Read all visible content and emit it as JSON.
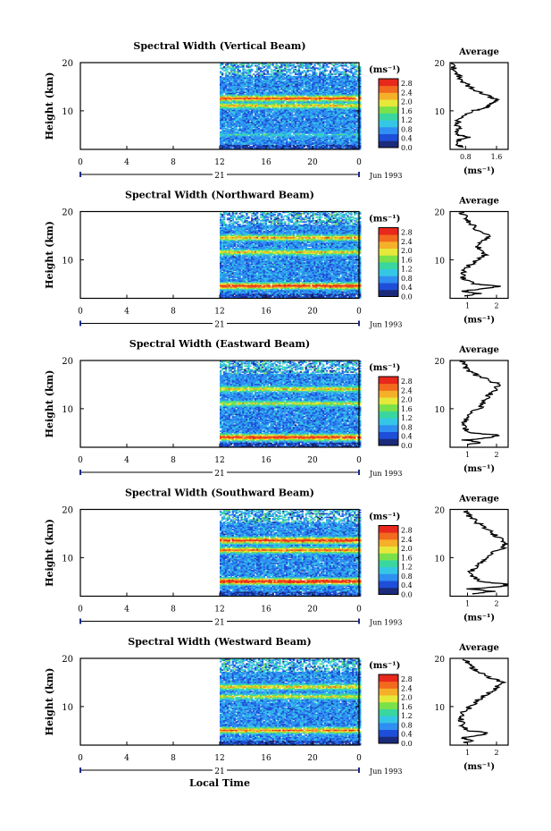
{
  "figure": {
    "x_axis_title": "Local Time",
    "date_label": "Jun 1993",
    "day_label": "21",
    "time_ticks": [
      "0",
      "4",
      "8",
      "12",
      "16",
      "20",
      "0"
    ],
    "height_ticks": [
      "20",
      "10"
    ],
    "height_axis_label": "Height (km)",
    "colorbar_unit": "(ms⁻¹)",
    "colorbar_ticks": [
      "2.8",
      "2.4",
      "2.0",
      "1.6",
      "1.2",
      "0.8",
      "0.4",
      "0.0"
    ],
    "average_title": "Average",
    "average_unit": "(ms⁻¹)",
    "palette": [
      "#1b2a7a",
      "#1e4fd8",
      "#2f8ff2",
      "#35c6e6",
      "#39d6a0",
      "#7be14a",
      "#e6e83a",
      "#f5b02a",
      "#f26a1e",
      "#e8281c"
    ]
  },
  "chart_data": [
    {
      "type": "heatmap",
      "title": "Spectral Width (Vertical Beam)",
      "xlabel": "",
      "ylabel": "Height (km)",
      "xlim": [
        0,
        24
      ],
      "ylim": [
        2,
        20
      ],
      "data_time_range": [
        12,
        24
      ],
      "value_range": [
        0,
        3.0
      ],
      "features": [
        {
          "height": 12.5,
          "value": 2.6
        },
        {
          "height": 11.0,
          "value": 2.0
        },
        {
          "height": 5.0,
          "value": 1.0
        },
        {
          "height": 18.0,
          "value": 0.4
        }
      ],
      "average": {
        "title": "Average",
        "xticks": [
          "0.8",
          "1.6"
        ],
        "xlim": [
          0.4,
          1.9
        ],
        "profile": [
          [
            2.5,
            0.7
          ],
          [
            3,
            0.6
          ],
          [
            4,
            0.6
          ],
          [
            4.5,
            0.9
          ],
          [
            5,
            0.6
          ],
          [
            6,
            0.6
          ],
          [
            7,
            0.6
          ],
          [
            8,
            0.6
          ],
          [
            9,
            0.7
          ],
          [
            10,
            1.0
          ],
          [
            10.5,
            1.3
          ],
          [
            11,
            1.4
          ],
          [
            11.5,
            1.5
          ],
          [
            12,
            1.6
          ],
          [
            12.5,
            1.55
          ],
          [
            13,
            1.4
          ],
          [
            14,
            1.1
          ],
          [
            15,
            0.9
          ],
          [
            16,
            0.75
          ],
          [
            17,
            0.65
          ],
          [
            18,
            0.55
          ],
          [
            19,
            0.5
          ],
          [
            20,
            0.45
          ]
        ]
      }
    },
    {
      "type": "heatmap",
      "title": "Spectral Width (Northward Beam)",
      "xlabel": "",
      "ylabel": "Height (km)",
      "xlim": [
        0,
        24
      ],
      "ylim": [
        2,
        20
      ],
      "data_time_range": [
        12,
        24
      ],
      "value_range": [
        0,
        3.0
      ],
      "features": [
        {
          "height": 4.5,
          "value": 2.8
        },
        {
          "height": 14.5,
          "value": 2.2
        },
        {
          "height": 11.5,
          "value": 2.0
        }
      ],
      "average": {
        "title": "Average",
        "xticks": [
          "1",
          "2"
        ],
        "xlim": [
          0.4,
          2.4
        ],
        "profile": [
          [
            2.5,
            0.9
          ],
          [
            3,
            1.4
          ],
          [
            3.5,
            0.8
          ],
          [
            4,
            1.6
          ],
          [
            4.5,
            2.2
          ],
          [
            5,
            1.2
          ],
          [
            6,
            0.9
          ],
          [
            7,
            0.8
          ],
          [
            8,
            0.9
          ],
          [
            9,
            1.1
          ],
          [
            10,
            1.4
          ],
          [
            11,
            1.6
          ],
          [
            12,
            1.5
          ],
          [
            13,
            1.3
          ],
          [
            14,
            1.6
          ],
          [
            15,
            1.8
          ],
          [
            16,
            1.4
          ],
          [
            17,
            1.2
          ],
          [
            18,
            1.0
          ],
          [
            19,
            0.9
          ],
          [
            20,
            0.8
          ]
        ]
      }
    },
    {
      "type": "heatmap",
      "title": "Spectral Width (Eastward Beam)",
      "xlabel": "",
      "ylabel": "Height (km)",
      "xlim": [
        0,
        24
      ],
      "ylim": [
        2,
        20
      ],
      "data_time_range": [
        12,
        24
      ],
      "value_range": [
        0,
        3.0
      ],
      "features": [
        {
          "height": 4.0,
          "value": 2.8
        },
        {
          "height": 14.0,
          "value": 2.0
        },
        {
          "height": 11.0,
          "value": 1.8
        }
      ],
      "average": {
        "title": "Average",
        "xticks": [
          "1",
          "2"
        ],
        "xlim": [
          0.4,
          2.4
        ],
        "profile": [
          [
            2.5,
            0.9
          ],
          [
            3,
            1.5
          ],
          [
            3.5,
            0.9
          ],
          [
            4,
            1.8
          ],
          [
            4.5,
            2.1
          ],
          [
            5,
            1.1
          ],
          [
            6,
            0.9
          ],
          [
            7,
            0.9
          ],
          [
            8,
            1.0
          ],
          [
            9,
            1.1
          ],
          [
            10,
            1.4
          ],
          [
            11,
            1.5
          ],
          [
            12,
            1.6
          ],
          [
            13,
            1.8
          ],
          [
            14,
            2.0
          ],
          [
            15,
            2.1
          ],
          [
            16,
            1.7
          ],
          [
            17,
            1.3
          ],
          [
            18,
            1.0
          ],
          [
            19,
            0.9
          ],
          [
            20,
            0.8
          ]
        ]
      }
    },
    {
      "type": "heatmap",
      "title": "Spectral Width (Southward Beam)",
      "xlabel": "",
      "ylabel": "Height (km)",
      "xlim": [
        0,
        24
      ],
      "ylim": [
        2,
        20
      ],
      "data_time_range": [
        12,
        24
      ],
      "value_range": [
        0,
        3.0
      ],
      "features": [
        {
          "height": 5.0,
          "value": 3.0
        },
        {
          "height": 13.5,
          "value": 2.8
        },
        {
          "height": 11.5,
          "value": 2.4
        }
      ],
      "average": {
        "title": "Average",
        "xticks": [
          "1",
          "2"
        ],
        "xlim": [
          0.4,
          2.4
        ],
        "profile": [
          [
            2.5,
            1.1
          ],
          [
            3,
            1.9
          ],
          [
            3.5,
            1.0
          ],
          [
            4,
            2.2
          ],
          [
            4.5,
            2.4
          ],
          [
            5,
            1.5
          ],
          [
            6,
            1.2
          ],
          [
            7,
            1.1
          ],
          [
            8,
            1.3
          ],
          [
            9,
            1.5
          ],
          [
            10,
            1.7
          ],
          [
            11,
            1.9
          ],
          [
            12,
            2.2
          ],
          [
            13,
            2.3
          ],
          [
            14,
            2.1
          ],
          [
            15,
            1.9
          ],
          [
            16,
            1.7
          ],
          [
            17,
            1.4
          ],
          [
            18,
            1.2
          ],
          [
            19,
            1.0
          ],
          [
            20,
            0.9
          ]
        ]
      }
    },
    {
      "type": "heatmap",
      "title": "Spectral Width (Westward Beam)",
      "xlabel": "Local Time",
      "ylabel": "Height (km)",
      "xlim": [
        0,
        24
      ],
      "ylim": [
        2,
        20
      ],
      "data_time_range": [
        12,
        24
      ],
      "value_range": [
        0,
        3.0
      ],
      "features": [
        {
          "height": 5.0,
          "value": 2.4
        },
        {
          "height": 14.0,
          "value": 2.0
        },
        {
          "height": 12.0,
          "value": 1.8
        }
      ],
      "average": {
        "title": "Average",
        "xticks": [
          "1",
          "2"
        ],
        "xlim": [
          0.4,
          2.4
        ],
        "profile": [
          [
            2.5,
            0.9
          ],
          [
            3,
            1.2
          ],
          [
            3.5,
            0.8
          ],
          [
            4,
            1.4
          ],
          [
            4.5,
            1.8
          ],
          [
            5,
            1.0
          ],
          [
            6,
            0.8
          ],
          [
            7,
            0.8
          ],
          [
            8,
            0.8
          ],
          [
            9,
            0.9
          ],
          [
            10,
            1.1
          ],
          [
            11,
            1.3
          ],
          [
            12,
            1.5
          ],
          [
            13,
            1.8
          ],
          [
            14,
            2.0
          ],
          [
            15,
            2.2
          ],
          [
            16,
            1.8
          ],
          [
            17,
            1.5
          ],
          [
            18,
            1.2
          ],
          [
            19,
            1.0
          ],
          [
            20,
            0.9
          ]
        ]
      }
    }
  ]
}
